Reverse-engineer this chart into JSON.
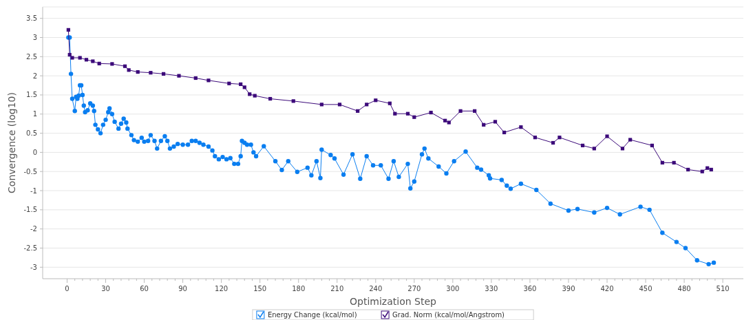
{
  "chart_data": {
    "type": "line",
    "xlabel": "Optimization Step",
    "ylabel": "Convergence (log10)",
    "xlim": [
      -19,
      526
    ],
    "ylim": [
      -3.3,
      3.8
    ],
    "xticks": [
      0,
      30,
      60,
      90,
      120,
      150,
      180,
      210,
      240,
      270,
      300,
      330,
      360,
      390,
      420,
      450,
      480,
      510
    ],
    "yticks": [
      -3,
      -2.5,
      -2,
      -1.5,
      -1,
      -0.5,
      0,
      0.5,
      1,
      1.5,
      2,
      2.5,
      3,
      3.5
    ],
    "grid": "y",
    "legend": "bottom",
    "series": [
      {
        "name": "Energy Change (kcal/mol)",
        "color": "#0a7ef0",
        "marker": "circle",
        "x": [
          1,
          2,
          3,
          4,
          6,
          7,
          8,
          9,
          10,
          11,
          12,
          13,
          14,
          16,
          18,
          20,
          21,
          22,
          24,
          26,
          28,
          30,
          32,
          33,
          35,
          37,
          40,
          42,
          44,
          46,
          47,
          50,
          52,
          55,
          58,
          60,
          63,
          65,
          68,
          70,
          73,
          76,
          78,
          80,
          83,
          86,
          90,
          94,
          97,
          100,
          103,
          106,
          110,
          113,
          115,
          118,
          121,
          124,
          127,
          130,
          133,
          135,
          136,
          138,
          140,
          143,
          145,
          147,
          153,
          162,
          167,
          172,
          179,
          187,
          190,
          194,
          197,
          198,
          205,
          208,
          215,
          222,
          228,
          233,
          238,
          244,
          250,
          254,
          258,
          265,
          267,
          270,
          276,
          278,
          281,
          289,
          295,
          301,
          310,
          319,
          322,
          328,
          329,
          338,
          342,
          345,
          353,
          365,
          376,
          390,
          397,
          410,
          420,
          430,
          446,
          453,
          463,
          474,
          481,
          490,
          499,
          503
        ],
        "values": [
          3.0,
          3.0,
          2.05,
          1.4,
          1.08,
          1.45,
          1.4,
          1.48,
          1.75,
          1.75,
          1.5,
          1.22,
          1.05,
          1.1,
          1.28,
          1.22,
          1.08,
          0.72,
          0.6,
          0.5,
          0.72,
          0.85,
          1.05,
          1.15,
          1.0,
          0.8,
          0.62,
          0.75,
          0.88,
          0.78,
          0.62,
          0.45,
          0.32,
          0.28,
          0.38,
          0.28,
          0.3,
          0.45,
          0.3,
          0.1,
          0.3,
          0.42,
          0.3,
          0.1,
          0.15,
          0.22,
          0.2,
          0.2,
          0.3,
          0.3,
          0.25,
          0.2,
          0.15,
          0.05,
          -0.1,
          -0.18,
          -0.12,
          -0.18,
          -0.15,
          -0.3,
          -0.3,
          -0.1,
          0.3,
          0.25,
          0.2,
          0.2,
          0.0,
          -0.1,
          0.16,
          -0.23,
          -0.46,
          -0.23,
          -0.51,
          -0.4,
          -0.6,
          -0.23,
          -0.67,
          0.07,
          -0.07,
          -0.16,
          -0.58,
          -0.05,
          -0.69,
          -0.1,
          -0.34,
          -0.34,
          -0.69,
          -0.23,
          -0.64,
          -0.3,
          -0.94,
          -0.76,
          -0.05,
          0.1,
          -0.16,
          -0.37,
          -0.55,
          -0.23,
          0.02,
          -0.4,
          -0.45,
          -0.6,
          -0.68,
          -0.72,
          -0.87,
          -0.95,
          -0.82,
          -0.98,
          -1.34,
          -1.52,
          -1.48,
          -1.57,
          -1.45,
          -1.62,
          -1.42,
          -1.5,
          -2.1,
          -2.34,
          -2.5,
          -2.82,
          -2.92,
          -2.88
        ]
      },
      {
        "name": "Grad. Norm (kcal/mol/Angstrom)",
        "color": "#3c0a7a",
        "marker": "square",
        "x": [
          1,
          2,
          4,
          10,
          15,
          20,
          25,
          35,
          45,
          48,
          55,
          65,
          75,
          87,
          100,
          110,
          126,
          135,
          138,
          142,
          146,
          158,
          176,
          198,
          212,
          226,
          233,
          240,
          251,
          255,
          265,
          270,
          283,
          294,
          297,
          306,
          317,
          324,
          333,
          340,
          353,
          364,
          378,
          383,
          401,
          410,
          420,
          432,
          438,
          455,
          463,
          472,
          483,
          494,
          498,
          501
        ],
        "values": [
          3.2,
          2.55,
          2.47,
          2.47,
          2.42,
          2.38,
          2.32,
          2.31,
          2.25,
          2.15,
          2.1,
          2.08,
          2.05,
          2.0,
          1.94,
          1.88,
          1.8,
          1.78,
          1.7,
          1.52,
          1.48,
          1.4,
          1.34,
          1.25,
          1.25,
          1.08,
          1.25,
          1.36,
          1.28,
          1.01,
          1.01,
          0.92,
          1.04,
          0.83,
          0.78,
          1.08,
          1.08,
          0.72,
          0.8,
          0.52,
          0.66,
          0.39,
          0.25,
          0.39,
          0.18,
          0.1,
          0.42,
          0.1,
          0.33,
          0.18,
          -0.27,
          -0.27,
          -0.45,
          -0.5,
          -0.41,
          -0.45
        ]
      }
    ]
  }
}
